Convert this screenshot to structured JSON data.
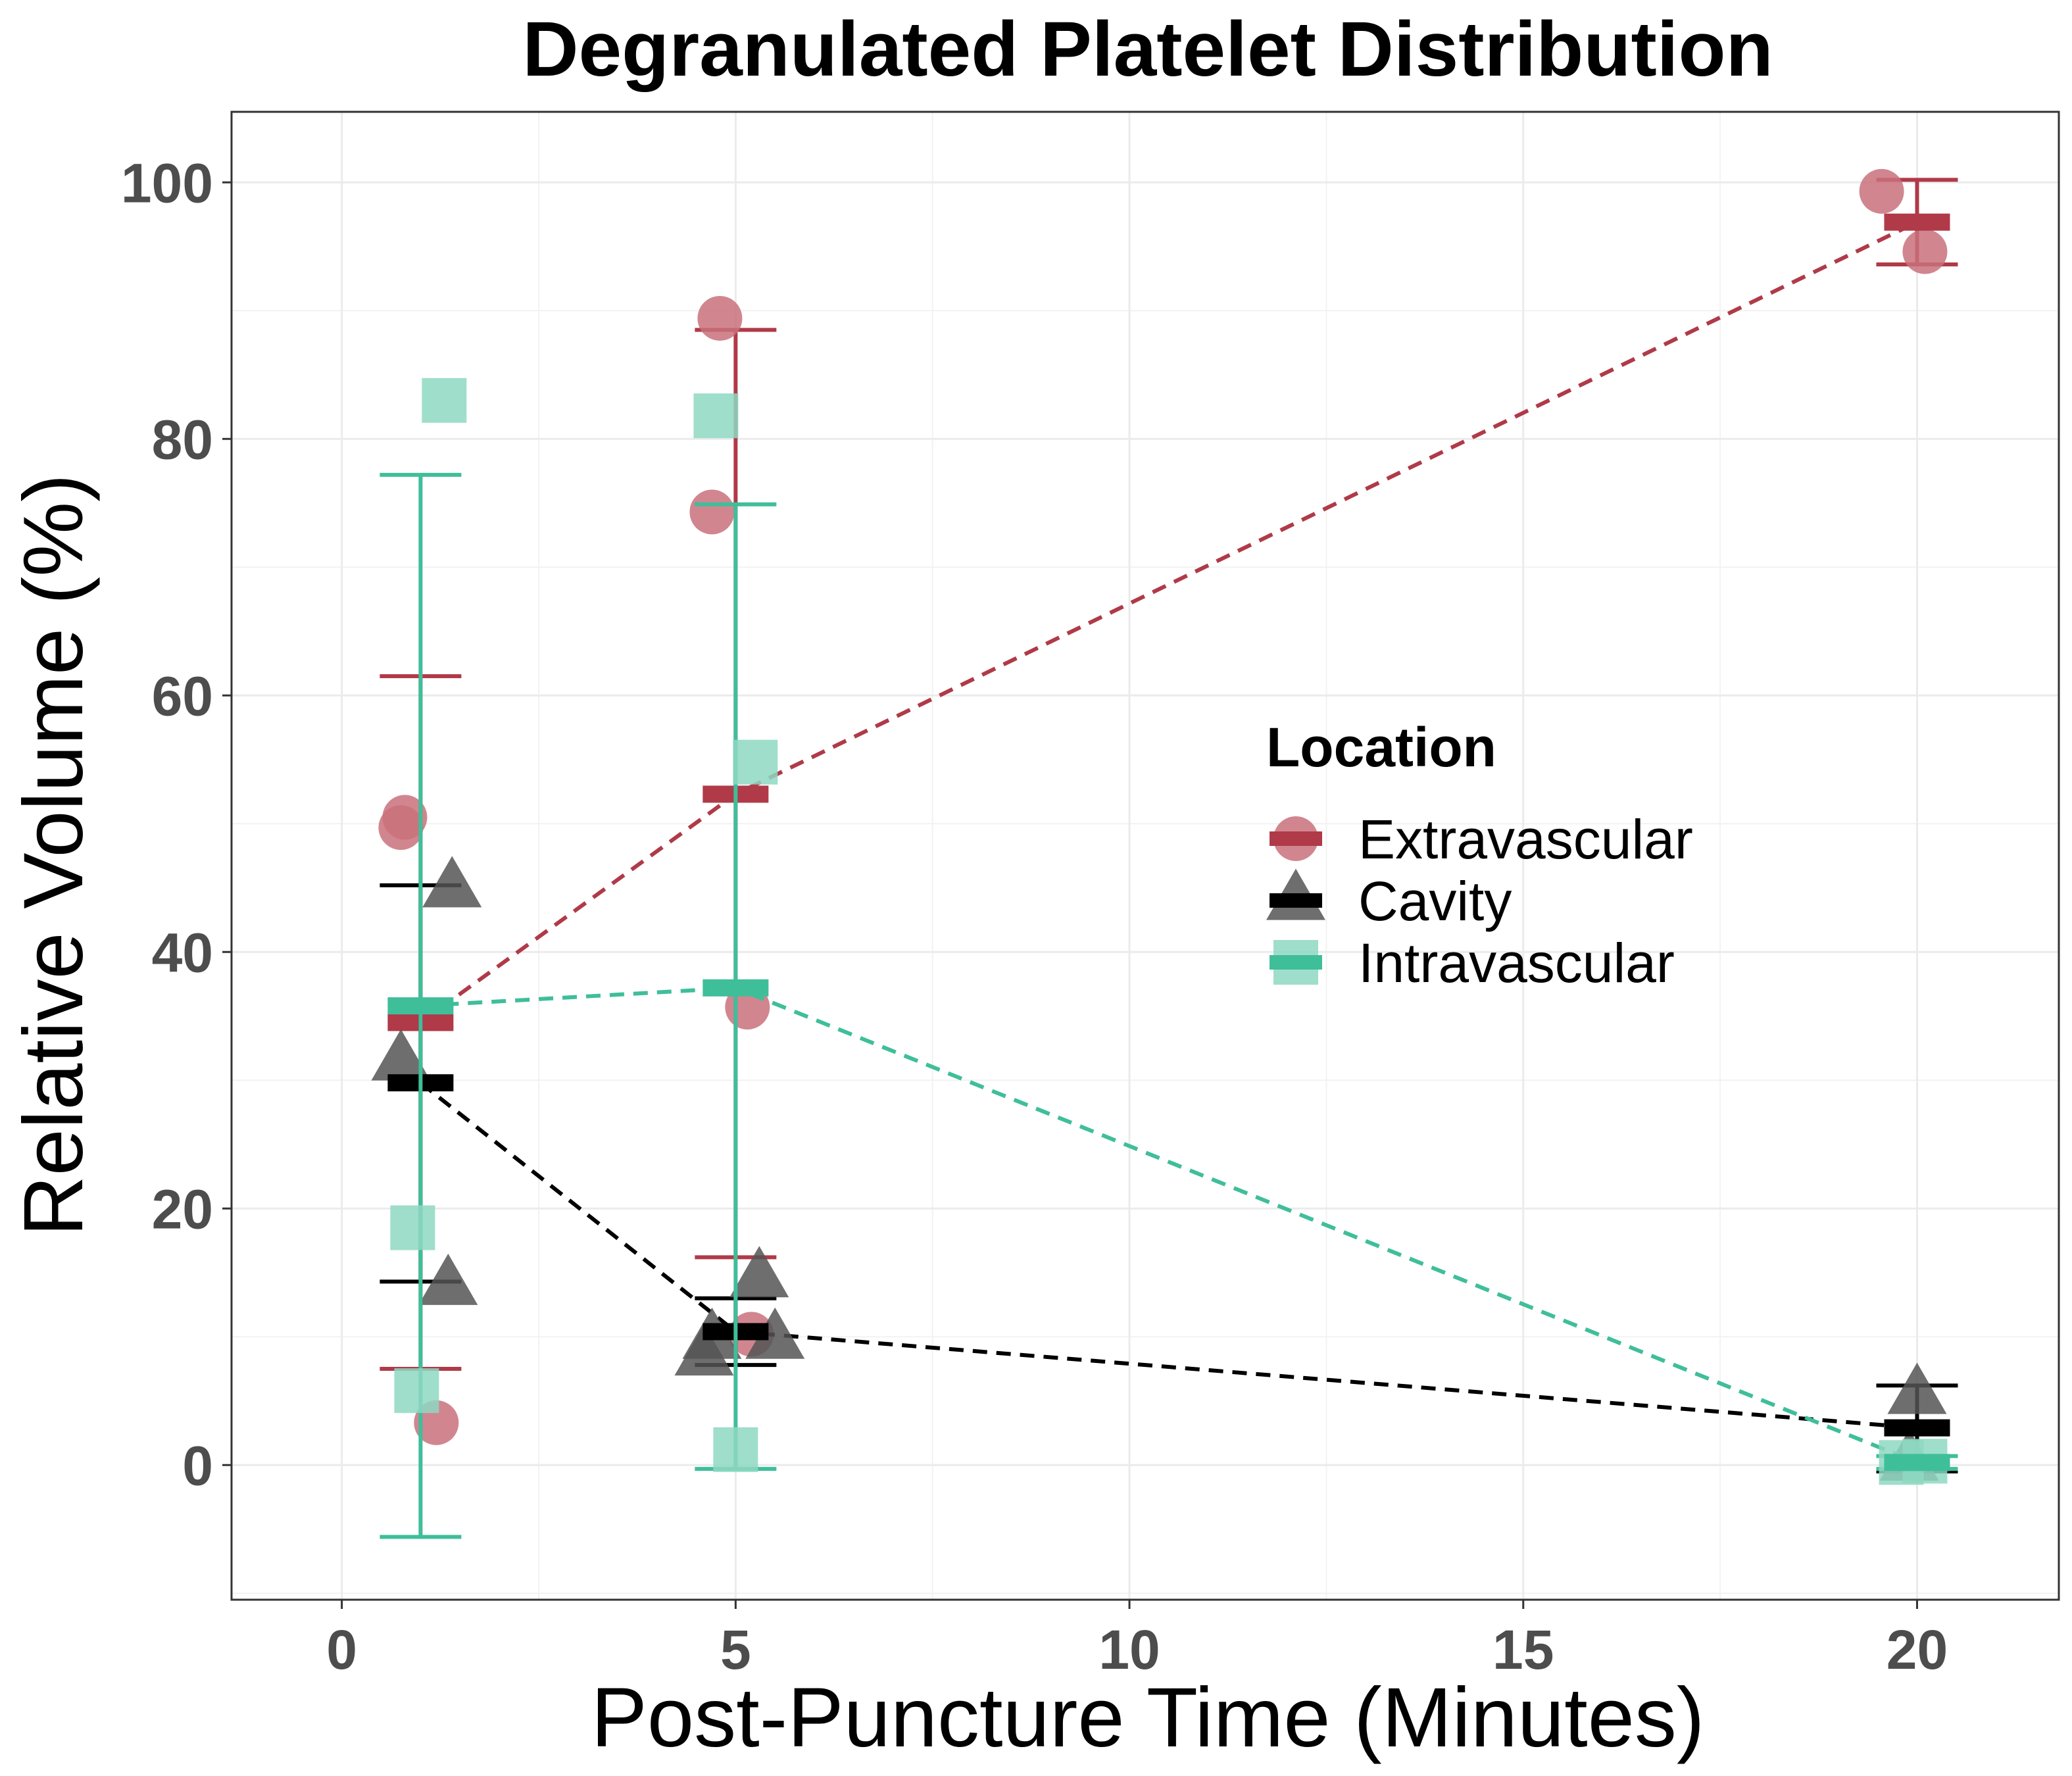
{
  "chart_data": {
    "type": "scatter",
    "title": "Degranulated Platelet Distribution",
    "xlabel": "Post-Puncture Time (Minutes)",
    "ylabel": "Relative Volume (%)",
    "xlim": [
      -1.4,
      21.8
    ],
    "ylim": [
      -10.5,
      105.5
    ],
    "x_ticks": [
      0,
      5,
      10,
      15,
      20
    ],
    "y_ticks": [
      0,
      20,
      40,
      60,
      80,
      100
    ],
    "grid": true,
    "legend_title": "Location",
    "legend_position": "right-center inside plot",
    "series": [
      {
        "name": "Extravascular",
        "color": "#b03a48",
        "point_color": "#c9717b",
        "marker": "circle",
        "points": [
          {
            "x": 0.8,
            "y": 50.5
          },
          {
            "x": 0.75,
            "y": 49.7
          },
          {
            "x": 1.2,
            "y": 3.3
          },
          {
            "x": 4.8,
            "y": 89.4
          },
          {
            "x": 4.7,
            "y": 74.3
          },
          {
            "x": 5.15,
            "y": 35.7
          },
          {
            "x": 5.2,
            "y": 10.2
          },
          {
            "x": 19.55,
            "y": 99.3
          },
          {
            "x": 20.1,
            "y": 94.6
          }
        ],
        "means": [
          {
            "x": 1,
            "y": 34.5
          },
          {
            "x": 5,
            "y": 52.3
          },
          {
            "x": 20,
            "y": 96.9
          }
        ],
        "error_bars": [
          {
            "x": 1,
            "lower": 7.5,
            "upper": 61.5
          },
          {
            "x": 5,
            "lower": 16.2,
            "upper": 88.5
          },
          {
            "x": 20,
            "lower": 93.6,
            "upper": 100.2
          }
        ]
      },
      {
        "name": "Cavity",
        "color": "#000000",
        "point_color": "#555555",
        "marker": "triangle",
        "points": [
          {
            "x": 0.75,
            "y": 31.5
          },
          {
            "x": 1.4,
            "y": 45.0
          },
          {
            "x": 1.35,
            "y": 14.0
          },
          {
            "x": 4.7,
            "y": 9.8
          },
          {
            "x": 4.6,
            "y": 8.5
          },
          {
            "x": 5.3,
            "y": 14.6
          },
          {
            "x": 5.5,
            "y": 9.8
          },
          {
            "x": 20.0,
            "y": 5.5
          },
          {
            "x": 19.9,
            "y": 0.3
          }
        ],
        "means": [
          {
            "x": 1,
            "y": 29.8
          },
          {
            "x": 5,
            "y": 10.4
          },
          {
            "x": 20,
            "y": 2.9
          }
        ],
        "error_bars": [
          {
            "x": 1,
            "lower": 14.3,
            "upper": 45.2
          },
          {
            "x": 5,
            "lower": 7.8,
            "upper": 13.0
          },
          {
            "x": 20,
            "lower": -0.5,
            "upper": 6.2
          }
        ]
      },
      {
        "name": "Intravascular",
        "color": "#3fbe9a",
        "point_color": "#8ed8c2",
        "marker": "square",
        "points": [
          {
            "x": 1.3,
            "y": 83.0
          },
          {
            "x": 0.9,
            "y": 18.5
          },
          {
            "x": 0.95,
            "y": 5.8
          },
          {
            "x": 4.75,
            "y": 81.8
          },
          {
            "x": 5.25,
            "y": 54.8
          },
          {
            "x": 5.0,
            "y": 1.2
          },
          {
            "x": 19.8,
            "y": 0.2
          },
          {
            "x": 20.1,
            "y": 0.3
          }
        ],
        "means": [
          {
            "x": 1,
            "y": 35.8
          },
          {
            "x": 5,
            "y": 37.2
          },
          {
            "x": 20,
            "y": 0.2
          }
        ],
        "error_bars": [
          {
            "x": 1,
            "lower": -5.6,
            "upper": 77.2
          },
          {
            "x": 5,
            "lower": -0.3,
            "upper": 74.9
          },
          {
            "x": 20,
            "lower": -0.3,
            "upper": 0.7
          }
        ]
      }
    ]
  }
}
